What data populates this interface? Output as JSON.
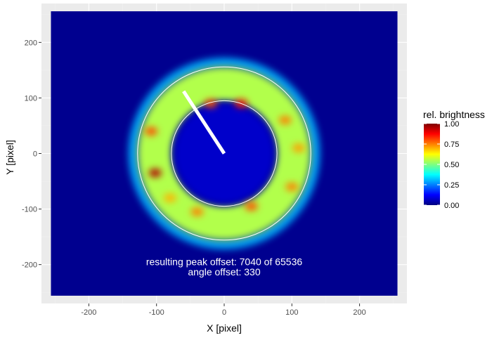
{
  "chart_data": {
    "type": "heatmap",
    "xlabel": "X [pixel]",
    "ylabel": "Y [pixel]",
    "xlim": [
      -270,
      270
    ],
    "ylim": [
      -270,
      270
    ],
    "x_ticks": [
      -200,
      -100,
      0,
      100,
      200
    ],
    "y_ticks": [
      -200,
      -100,
      0,
      100,
      200
    ],
    "x_tick_labels": [
      "-200",
      "-100",
      "0",
      "100",
      "200"
    ],
    "y_tick_labels": [
      "-200",
      "-100",
      "0",
      "100",
      "200"
    ],
    "grid": true,
    "image_extent": {
      "x": [
        -256,
        256
      ],
      "y": [
        -256,
        256
      ]
    },
    "background_value": 0.0,
    "ring": {
      "center": [
        0,
        0
      ],
      "inner_radius": 78,
      "outer_radius": 128,
      "typical_brightness": 0.55,
      "hotspots": [
        {
          "x": -102,
          "y": -35,
          "value": 0.95
        },
        {
          "x": -108,
          "y": 40,
          "value": 0.8
        },
        {
          "x": -20,
          "y": 90,
          "value": 0.8
        },
        {
          "x": 25,
          "y": 90,
          "value": 0.85
        },
        {
          "x": 90,
          "y": 60,
          "value": 0.75
        },
        {
          "x": 110,
          "y": 10,
          "value": 0.72
        },
        {
          "x": 100,
          "y": -60,
          "value": 0.75
        },
        {
          "x": 40,
          "y": -95,
          "value": 0.8
        },
        {
          "x": -40,
          "y": -105,
          "value": 0.75
        },
        {
          "x": -80,
          "y": -80,
          "value": 0.7
        }
      ],
      "circles": [
        {
          "r": 78,
          "color": "#ffffff"
        },
        {
          "r": 128,
          "color": "#ffffff"
        }
      ]
    },
    "offset_line": {
      "x": [
        0,
        -60
      ],
      "y": [
        0,
        112
      ],
      "color": "#ffffff"
    },
    "legend": {
      "title": "rel. brightness",
      "placement": "right",
      "min": 0.0,
      "max": 1.0,
      "ticks": [
        0.0,
        0.25,
        0.5,
        0.75,
        1.0
      ],
      "tick_labels": [
        "0.00",
        "0.25",
        "0.50",
        "0.75",
        "1.00"
      ],
      "colormap": [
        "#00007f",
        "#0000ff",
        "#007fff",
        "#00ffff",
        "#7fff7f",
        "#ffff00",
        "#ff7f00",
        "#ff0000",
        "#7f0000"
      ]
    },
    "annotations": [
      {
        "text": "resulting peak offset: 7040 of 65536",
        "x": 0,
        "y": -195
      },
      {
        "text": "angle offset: 330",
        "x": 0,
        "y": -213
      }
    ]
  },
  "colors": {
    "panel_background": "#ebebeb",
    "grid_major": "#ffffff",
    "grid_minor": "#f2f2f2",
    "image_background": "#00008f"
  }
}
